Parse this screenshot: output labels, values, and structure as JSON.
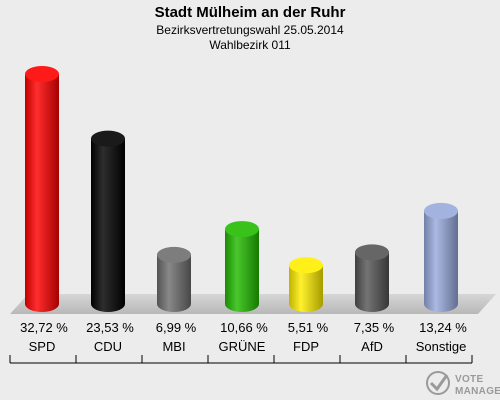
{
  "chart_data": {
    "type": "bar",
    "title": "Stadt Mülheim an der Ruhr",
    "subtitle": [
      "Bezirksvertretungswahl 25.05.2014",
      "Wahlbezirk 011"
    ],
    "categories": [
      "SPD",
      "CDU",
      "MBI",
      "GRÜNE",
      "FDP",
      "AfD",
      "Sonstige"
    ],
    "values": [
      32.72,
      23.53,
      6.99,
      10.66,
      5.51,
      7.35,
      13.24
    ],
    "value_labels": [
      "32,72 %",
      "23,53 %",
      "6,99 %",
      "10,66 %",
      "5,51 %",
      "7,35 %",
      "13,24 %"
    ],
    "colors": [
      "#ff0000",
      "#000000",
      "#6e6e6e",
      "#22bb00",
      "#ffee00",
      "#555555",
      "#99aadd"
    ],
    "ylim": [
      0,
      35
    ],
    "grid": false,
    "legend": "none"
  },
  "watermark": {
    "line1": "VOTE",
    "line2": "MANAGER"
  }
}
